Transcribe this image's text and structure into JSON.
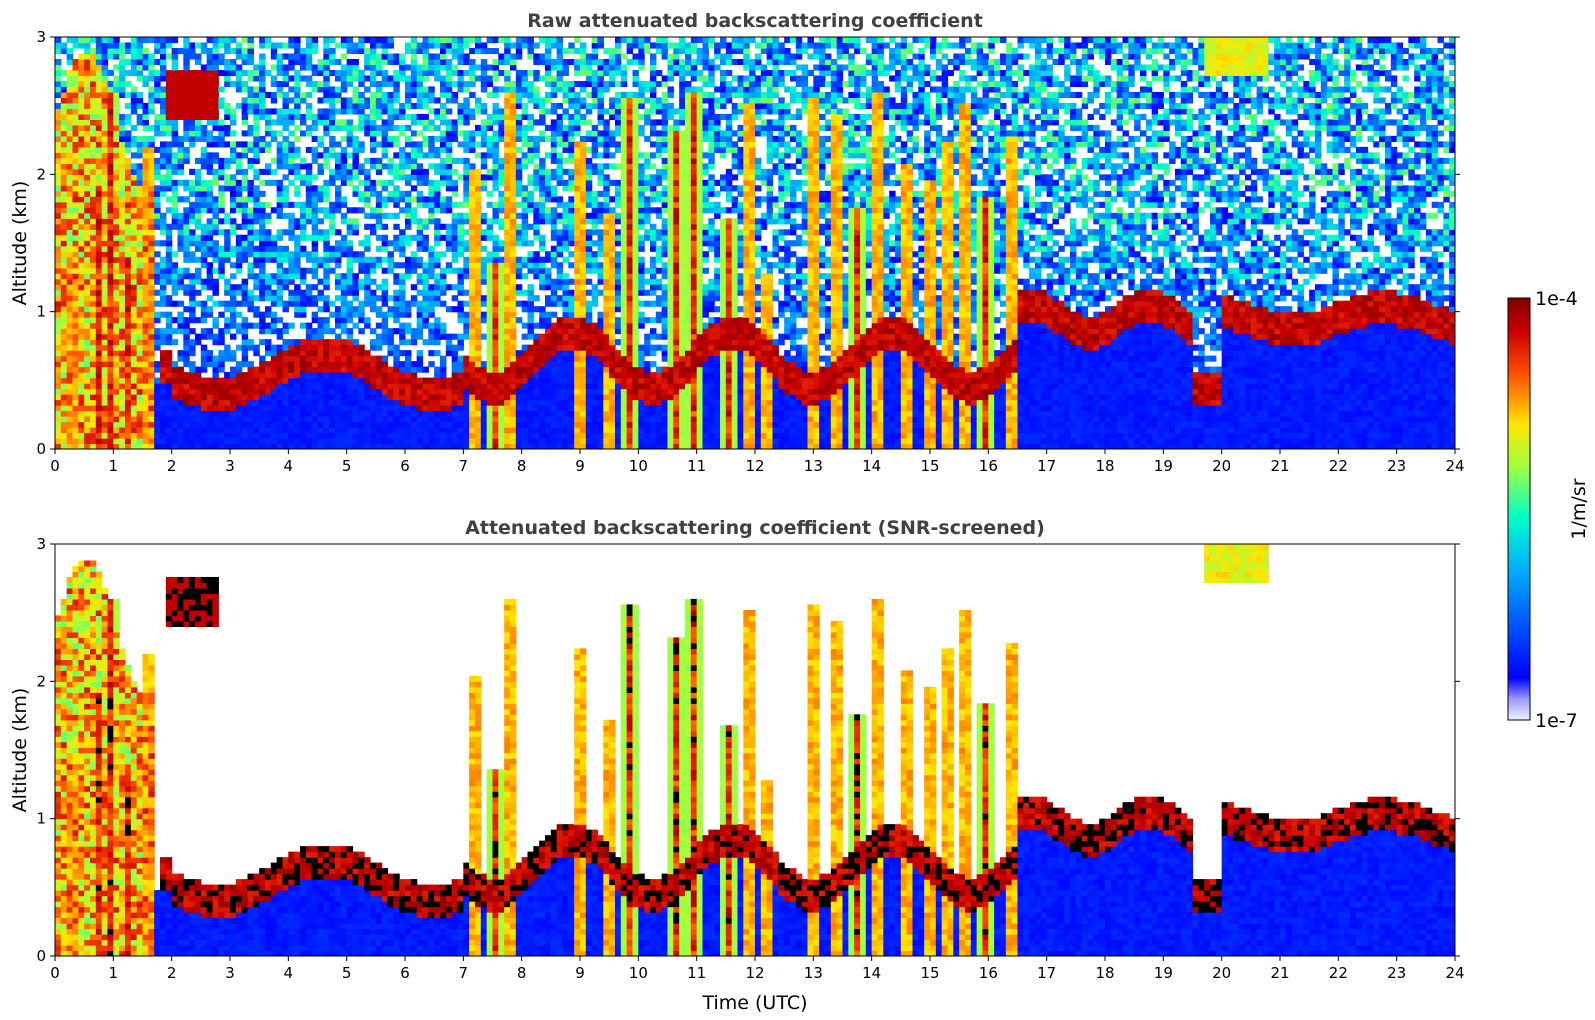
{
  "chart_data": [
    {
      "type": "heatmap",
      "title": "Raw attenuated backscattering coefficient",
      "xlabel": "",
      "ylabel": "Altitude (km)",
      "xlim": [
        0,
        24
      ],
      "ylim": [
        0,
        3
      ],
      "xticks": [
        "0",
        "1",
        "2",
        "3",
        "4",
        "5",
        "6",
        "7",
        "8",
        "9",
        "10",
        "11",
        "12",
        "13",
        "14",
        "15",
        "16",
        "17",
        "18",
        "19",
        "20",
        "21",
        "22",
        "23",
        "24"
      ],
      "yticks": [
        "0",
        "1",
        "2",
        "3"
      ],
      "grid": false,
      "screened": false
    },
    {
      "type": "heatmap",
      "title": "Attenuated backscattering coefficient (SNR-screened)",
      "xlabel": "Time (UTC)",
      "ylabel": "Altitude (km)",
      "xlim": [
        0,
        24
      ],
      "ylim": [
        0,
        3
      ],
      "xticks": [
        "0",
        "1",
        "2",
        "3",
        "4",
        "5",
        "6",
        "7",
        "8",
        "9",
        "10",
        "11",
        "12",
        "13",
        "14",
        "15",
        "16",
        "17",
        "18",
        "19",
        "20",
        "21",
        "22",
        "23",
        "24"
      ],
      "yticks": [
        "0",
        "1",
        "2",
        "3"
      ],
      "grid": false,
      "screened": true
    }
  ],
  "colorbar": {
    "label": "1/m/sr",
    "max_label": "1e-4",
    "min_label": "1e-7",
    "scale": "log",
    "range": [
      1e-07,
      0.0001
    ],
    "colormap": "jet",
    "colors": [
      "#e8e8ff",
      "#0000ff",
      "#00c8ff",
      "#80ff80",
      "#ffe600",
      "#ff3300",
      "#8b0000"
    ]
  }
}
